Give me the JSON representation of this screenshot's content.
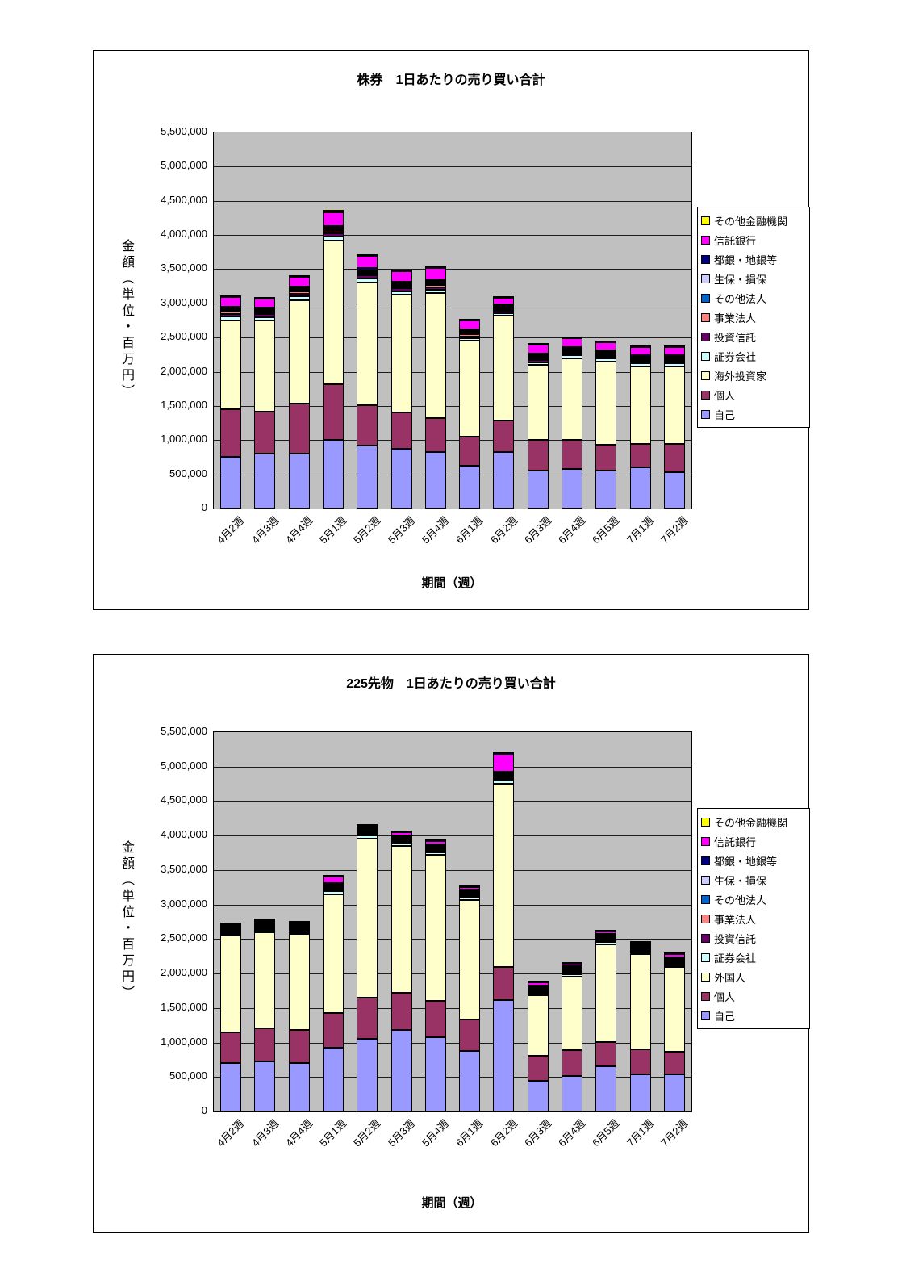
{
  "page": {
    "background": "#ffffff"
  },
  "chart_data": [
    {
      "type": "bar",
      "stacked": true,
      "title": "株券　1日あたりの売り買い合計",
      "xlabel": "期間（週）",
      "ylabel": "金額（単位・百万円）",
      "ylim": [
        0,
        5500000
      ],
      "ytick_step": 500000,
      "plot_bg": "#c0c0c0",
      "legend_position": "right",
      "series_order": "bottom-to-top",
      "categories": [
        "4月2週",
        "4月3週",
        "4月4週",
        "5月1週",
        "5月2週",
        "5月3週",
        "5月4週",
        "6月1週",
        "6月2週",
        "6月3週",
        "6月4週",
        "6月5週",
        "7月1週",
        "7月2週"
      ],
      "series": [
        {
          "name": "自己",
          "color": "#9999FF",
          "values": [
            750000,
            800000,
            800000,
            1000000,
            920000,
            870000,
            830000,
            620000,
            830000,
            560000,
            580000,
            560000,
            600000,
            530000
          ]
        },
        {
          "name": "個人",
          "color": "#993366",
          "values": [
            700000,
            620000,
            730000,
            820000,
            590000,
            530000,
            490000,
            430000,
            460000,
            440000,
            420000,
            370000,
            350000,
            420000
          ]
        },
        {
          "name": "海外投資家",
          "color": "#FFFFCC",
          "values": [
            1300000,
            1330000,
            1520000,
            2100000,
            1800000,
            1730000,
            1830000,
            1400000,
            1530000,
            1100000,
            1200000,
            1220000,
            1130000,
            1130000
          ]
        },
        {
          "name": "証券会社",
          "color": "#CCFFFF",
          "values": [
            60000,
            50000,
            50000,
            60000,
            60000,
            50000,
            50000,
            40000,
            40000,
            40000,
            40000,
            40000,
            40000,
            40000
          ]
        },
        {
          "name": "投資信託",
          "color": "#660066",
          "values": [
            40000,
            40000,
            40000,
            50000,
            40000,
            40000,
            40000,
            30000,
            30000,
            30000,
            30000,
            30000,
            30000,
            30000
          ]
        },
        {
          "name": "事業法人",
          "color": "#FF8080",
          "values": [
            30000,
            30000,
            30000,
            30000,
            30000,
            30000,
            30000,
            25000,
            25000,
            25000,
            25000,
            25000,
            25000,
            25000
          ]
        },
        {
          "name": "その他法人",
          "color": "#0066CC",
          "values": [
            15000,
            15000,
            15000,
            15000,
            15000,
            15000,
            15000,
            10000,
            10000,
            10000,
            10000,
            10000,
            10000,
            10000
          ]
        },
        {
          "name": "生保・損保",
          "color": "#CCCCFF",
          "values": [
            20000,
            20000,
            20000,
            20000,
            20000,
            20000,
            20000,
            15000,
            15000,
            15000,
            15000,
            15000,
            15000,
            15000
          ]
        },
        {
          "name": "都銀・地銀等",
          "color": "#000080",
          "values": [
            25000,
            25000,
            25000,
            25000,
            25000,
            25000,
            25000,
            20000,
            20000,
            20000,
            20000,
            20000,
            20000,
            20000
          ]
        },
        {
          "name": "信託銀行",
          "color": "#FF00FF",
          "values": [
            140000,
            130000,
            140000,
            200000,
            180000,
            150000,
            180000,
            130000,
            90000,
            130000,
            130000,
            120000,
            120000,
            110000
          ]
        },
        {
          "name": "その他金融機関",
          "color": "#FFFF00",
          "values": [
            20000,
            20000,
            20000,
            30000,
            25000,
            25000,
            25000,
            15000,
            15000,
            15000,
            15000,
            15000,
            15000,
            15000
          ]
        }
      ]
    },
    {
      "type": "bar",
      "stacked": true,
      "title": "225先物　1日あたりの売り買い合計",
      "xlabel": "期間（週）",
      "ylabel": "金額（単位・百万円）",
      "ylim": [
        0,
        5500000
      ],
      "ytick_step": 500000,
      "plot_bg": "#c0c0c0",
      "legend_position": "right",
      "series_order": "bottom-to-top",
      "categories": [
        "4月2週",
        "4月3週",
        "4月4週",
        "5月1週",
        "5月2週",
        "5月3週",
        "5月4週",
        "6月1週",
        "6月2週",
        "6月3週",
        "6月4週",
        "6月5週",
        "7月1週",
        "7月2週"
      ],
      "series": [
        {
          "name": "自己",
          "color": "#9999FF",
          "values": [
            700000,
            730000,
            700000,
            930000,
            1050000,
            1180000,
            1080000,
            880000,
            1620000,
            450000,
            510000,
            660000,
            540000,
            540000
          ]
        },
        {
          "name": "個人",
          "color": "#993366",
          "values": [
            450000,
            470000,
            480000,
            500000,
            600000,
            540000,
            520000,
            460000,
            480000,
            360000,
            380000,
            350000,
            360000,
            330000
          ]
        },
        {
          "name": "外国人",
          "color": "#FFFFCC",
          "values": [
            1400000,
            1400000,
            1390000,
            1720000,
            2300000,
            2130000,
            2120000,
            1730000,
            2650000,
            870000,
            1070000,
            1410000,
            1380000,
            1220000
          ]
        },
        {
          "name": "証券会社",
          "color": "#CCFFFF",
          "values": [
            30000,
            35000,
            30000,
            40000,
            50000,
            40000,
            40000,
            35000,
            60000,
            25000,
            30000,
            35000,
            30000,
            30000
          ]
        },
        {
          "name": "投資信託",
          "color": "#660066",
          "values": [
            15000,
            15000,
            15000,
            20000,
            20000,
            20000,
            20000,
            15000,
            25000,
            10000,
            15000,
            15000,
            15000,
            15000
          ]
        },
        {
          "name": "事業法人",
          "color": "#FF8080",
          "values": [
            10000,
            10000,
            10000,
            15000,
            15000,
            15000,
            15000,
            10000,
            20000,
            10000,
            10000,
            10000,
            10000,
            10000
          ]
        },
        {
          "name": "その他法人",
          "color": "#0066CC",
          "values": [
            10000,
            10000,
            10000,
            10000,
            10000,
            10000,
            10000,
            10000,
            15000,
            5000,
            10000,
            10000,
            10000,
            10000
          ]
        },
        {
          "name": "生保・損保",
          "color": "#CCCCFF",
          "values": [
            10000,
            10000,
            10000,
            15000,
            15000,
            15000,
            15000,
            10000,
            20000,
            10000,
            10000,
            10000,
            10000,
            10000
          ]
        },
        {
          "name": "都銀・地銀等",
          "color": "#000080",
          "values": [
            15000,
            15000,
            15000,
            15000,
            20000,
            20000,
            20000,
            15000,
            25000,
            10000,
            15000,
            15000,
            15000,
            15000
          ]
        },
        {
          "name": "信託銀行",
          "color": "#FF00FF",
          "values": [
            20000,
            25000,
            20000,
            100000,
            30000,
            40000,
            40000,
            35000,
            250000,
            50000,
            40000,
            40000,
            20000,
            40000
          ]
        },
        {
          "name": "その他金融機関",
          "color": "#FFFF00",
          "values": [
            5000,
            10000,
            5000,
            10000,
            10000,
            10000,
            10000,
            10000,
            30000,
            10000,
            10000,
            10000,
            10000,
            10000
          ]
        }
      ]
    }
  ]
}
